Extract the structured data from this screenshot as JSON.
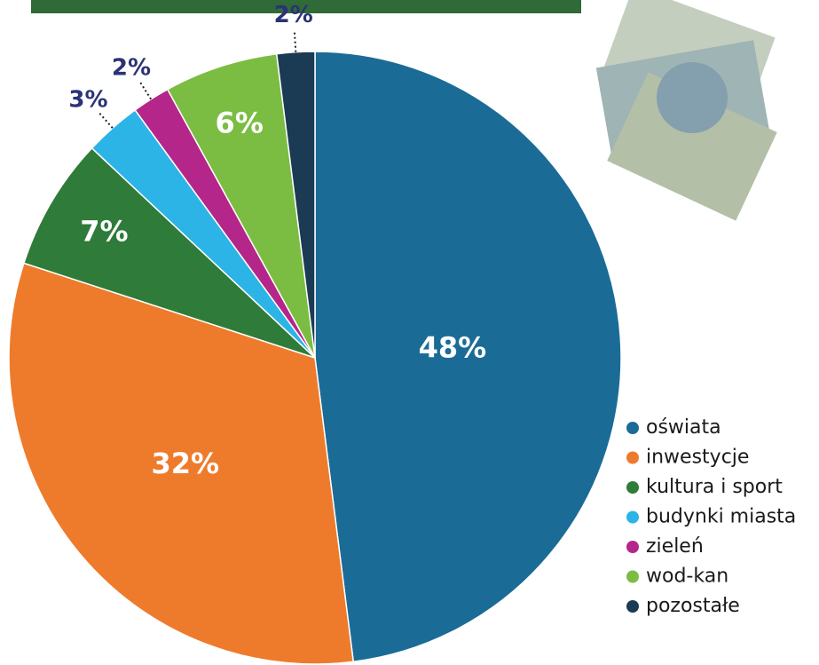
{
  "chart_data": {
    "type": "pie",
    "categories": [
      "oświata",
      "inwestycje",
      "kultura i sport",
      "budynki miasta",
      "zieleń",
      "wod-kan",
      "pozostałe"
    ],
    "values": [
      48,
      32,
      7,
      3,
      2,
      6,
      2
    ],
    "value_labels": [
      "48%",
      "32%",
      "7%",
      "3%",
      "2%",
      "6%",
      "2%"
    ],
    "colors": [
      "#1b6b97",
      "#ee7b2b",
      "#2f7b3a",
      "#2cb4e6",
      "#b42689",
      "#7bbd42",
      "#1b3a54"
    ],
    "legend": "right"
  }
}
